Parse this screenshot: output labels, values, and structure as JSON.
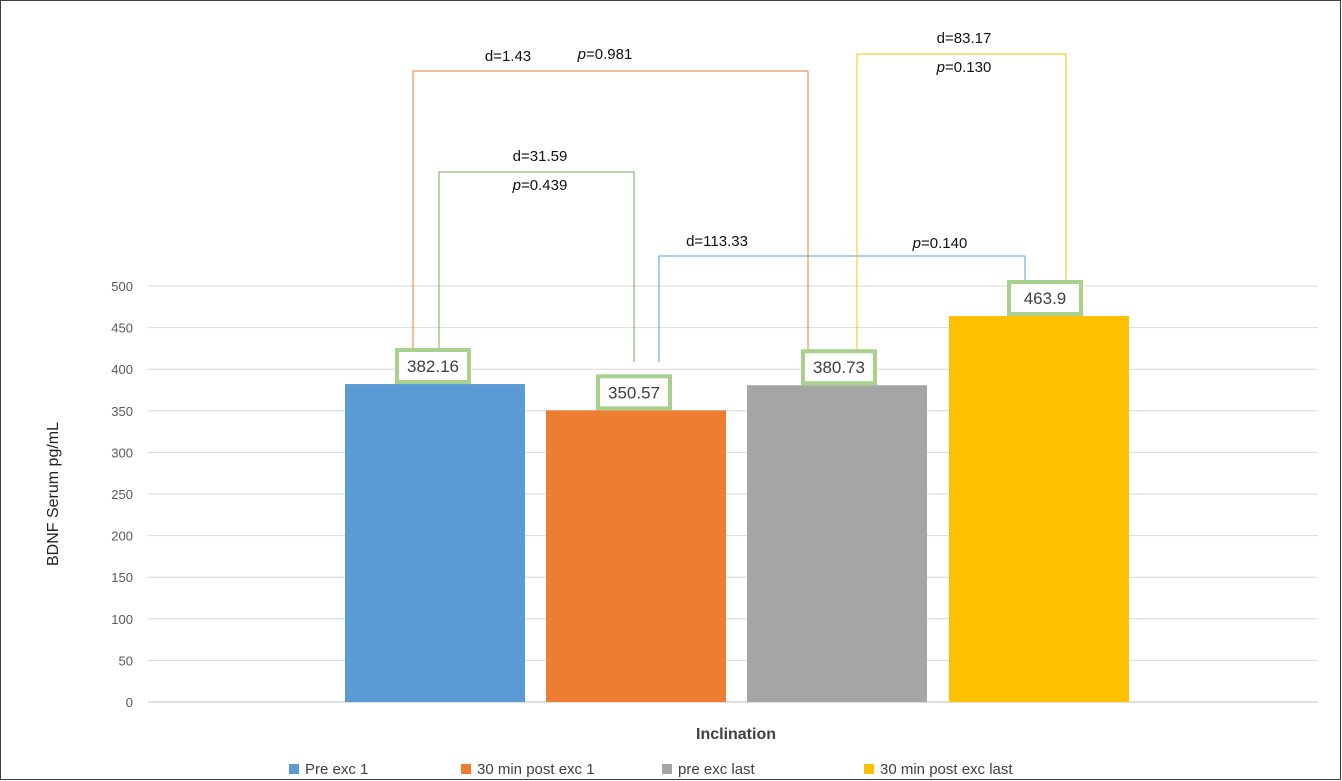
{
  "chart_data": {
    "type": "bar",
    "categories": [
      "Pre exc 1",
      "30 min post exc 1",
      "pre exc last",
      "30 min post exc last"
    ],
    "values": [
      382.16,
      350.57,
      380.73,
      463.9
    ],
    "data_labels": [
      "382.16",
      "350.57",
      "380.73",
      "463.9"
    ],
    "colors": [
      "#5b9bd5",
      "#ed7d31",
      "#a5a5a5",
      "#ffc000"
    ],
    "label_box_color": "#a9d18e",
    "xlabel": "Inclination",
    "ylabel": "BDNF Serum pg/mL",
    "ylim": [
      0,
      500
    ],
    "yticks": [
      "0",
      "50",
      "100",
      "150",
      "200",
      "250",
      "300",
      "350",
      "400",
      "450",
      "500"
    ],
    "grid": true,
    "legend_position": "bottom",
    "legend": [
      "Pre exc 1",
      "30 min post exc 1",
      "pre exc last",
      "30 min post exc last"
    ],
    "comparisons": [
      {
        "from": "Pre exc 1",
        "to": "pre exc last",
        "d": "d=1.43",
        "p_prefix": "p",
        "p_value": "=0.981",
        "color": "#ed7d31"
      },
      {
        "from": "Pre exc 1",
        "to": "30 min post exc 1",
        "d": "d=31.59",
        "p_prefix": "p",
        "p_value": "=0.439",
        "color": "#70ad47"
      },
      {
        "from": "30 min post exc 1",
        "to": "30 min post exc last",
        "d": "d=113.33",
        "p_prefix": "p",
        "p_value": "=0.140",
        "color": "#5b9bd5"
      },
      {
        "from": "pre exc last",
        "to": "30 min post exc last",
        "d": "d=83.17",
        "p_prefix": "p",
        "p_value": "=0.130",
        "color": "#ffc000"
      }
    ]
  }
}
